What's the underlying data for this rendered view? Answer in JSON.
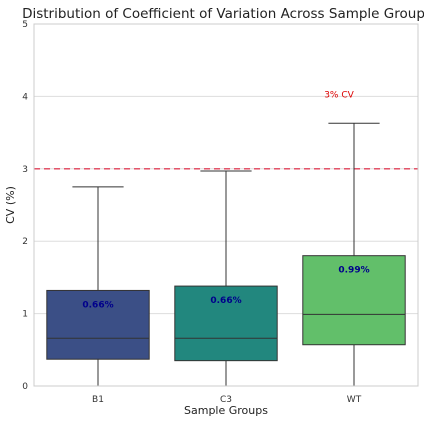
{
  "chart_data": {
    "type": "box",
    "title": "Distribution of Coefficient of Variation Across Sample Groups",
    "xlabel": "Sample Groups",
    "ylabel": "CV (%)",
    "ylim": [
      0,
      5
    ],
    "yticks": [
      0,
      1,
      2,
      3,
      4,
      5
    ],
    "grid": true,
    "categories": [
      "B1",
      "C3",
      "WT"
    ],
    "boxes": [
      {
        "category": "B1",
        "whisker_low": 0.0,
        "q1": 0.37,
        "median": 0.66,
        "q3": 1.32,
        "whisker_high": 2.75,
        "color": "#3b4f86",
        "mean_label": "0.66%"
      },
      {
        "category": "C3",
        "whisker_low": 0.0,
        "q1": 0.35,
        "median": 0.66,
        "q3": 1.38,
        "whisker_high": 2.97,
        "color": "#22877e",
        "mean_label": "0.66%"
      },
      {
        "category": "WT",
        "whisker_low": 0.0,
        "q1": 0.57,
        "median": 0.99,
        "q3": 1.8,
        "whisker_high": 3.63,
        "color": "#62bf6a",
        "mean_label": "0.99%"
      }
    ],
    "mean_label_color": "#00008b",
    "reference_line": {
      "y": 3,
      "label": "3% CV",
      "color": "#e0405a",
      "label_color": "#dd0000"
    }
  }
}
